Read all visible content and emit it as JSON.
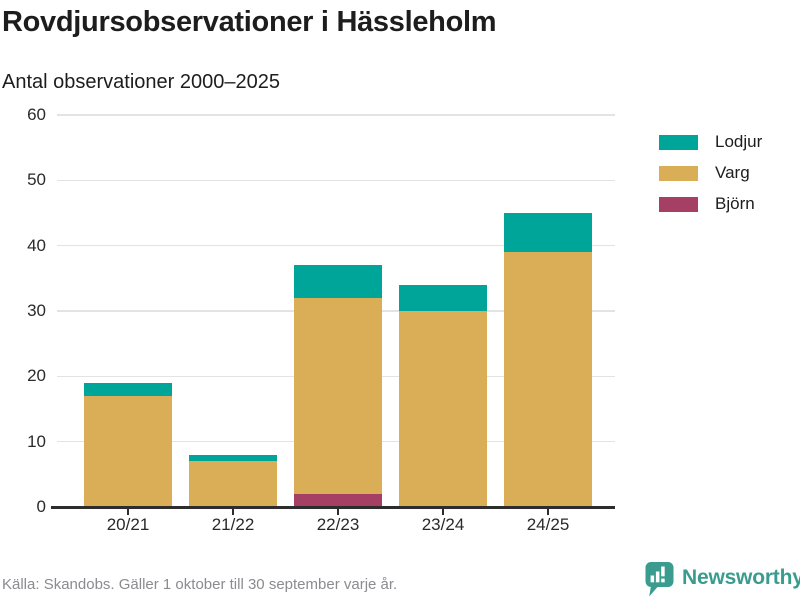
{
  "header": {
    "title": "Rovdjursobservationer i Hässleholm",
    "subtitle": "Antal observationer 2000–2025"
  },
  "chart_data": {
    "type": "bar",
    "stacked": true,
    "title": "Rovdjursobservationer i Hässleholm",
    "subtitle": "Antal observationer 2000–2025",
    "categories": [
      "20/21",
      "21/22",
      "22/23",
      "23/24",
      "24/25"
    ],
    "series": [
      {
        "name": "Björn",
        "key": "bjorn",
        "color": "#a53f63",
        "values": [
          0,
          0,
          2,
          0,
          0
        ]
      },
      {
        "name": "Varg",
        "key": "varg",
        "color": "#d9ae56",
        "values": [
          17,
          7,
          30,
          30,
          39
        ]
      },
      {
        "name": "Lodjur",
        "key": "lodjur",
        "color": "#00a59a",
        "values": [
          2,
          1,
          5,
          4,
          6
        ]
      }
    ],
    "totals": [
      19,
      8,
      37,
      34,
      45
    ],
    "legend": [
      {
        "label": "Lodjur",
        "key": "lodjur",
        "color": "#00a59a"
      },
      {
        "label": "Varg",
        "key": "varg",
        "color": "#d9ae56"
      },
      {
        "label": "Björn",
        "key": "bjorn",
        "color": "#a53f63"
      }
    ],
    "legend_position": "right",
    "xlabel": "",
    "ylabel": "",
    "ylim": [
      0,
      60
    ],
    "yticks": [
      0,
      10,
      20,
      30,
      40,
      50,
      60
    ],
    "grid": true
  },
  "footer": {
    "source": "Källa: Skandobs. Gäller 1 oktober till 30 september varje år.",
    "brand": "Newsworthy"
  },
  "icons": {
    "brand": "newsworthy-bubble-chart-icon"
  },
  "colors": {
    "lodjur_teal": "#00a59a",
    "varg_gold": "#d9ae56",
    "bjorn_maroon": "#a53f63",
    "brand_teal": "#3a9c8f",
    "axis": "#2d2d2d",
    "grid": "#e3e3e3",
    "text": "#1d1d1d",
    "muted_text": "#8b8b90"
  }
}
